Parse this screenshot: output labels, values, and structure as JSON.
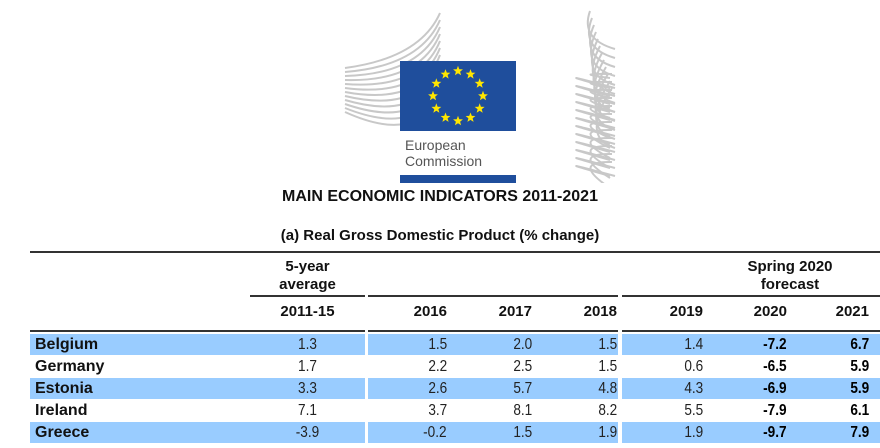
{
  "logo": {
    "org_line1": "European",
    "org_line2": "Commission",
    "flag_colors": {
      "blue": "#1f4e9c",
      "stars": "#ffe600"
    }
  },
  "title": "MAIN ECONOMIC INDICATORS 2011-2021",
  "subtitle": "(a) Real Gross Domestic Product (% change)",
  "header": {
    "avg_line1": "5-year",
    "avg_line2": "average",
    "forecast_line1": "Spring 2020",
    "forecast_line2": "forecast"
  },
  "columns": [
    "2011-15",
    "2016",
    "2017",
    "2018",
    "2019",
    "2020",
    "2021"
  ],
  "rows": [
    {
      "country": "Belgium",
      "values": [
        "1.3",
        "1.5",
        "2.0",
        "1.5",
        "1.4",
        "-7.2",
        "6.7"
      ]
    },
    {
      "country": "Germany",
      "values": [
        "1.7",
        "2.2",
        "2.5",
        "1.5",
        "0.6",
        "-6.5",
        "5.9"
      ]
    },
    {
      "country": "Estonia",
      "values": [
        "3.3",
        "2.6",
        "5.7",
        "4.8",
        "4.3",
        "-6.9",
        "5.9"
      ]
    },
    {
      "country": "Ireland",
      "values": [
        "7.1",
        "3.7",
        "8.1",
        "8.2",
        "5.5",
        "-7.9",
        "6.1"
      ]
    },
    {
      "country": "Greece",
      "values": [
        "-3.9",
        "-0.2",
        "1.5",
        "1.9",
        "1.9",
        "-9.7",
        "7.9"
      ]
    }
  ],
  "colors": {
    "highlight": "#99ccff"
  }
}
